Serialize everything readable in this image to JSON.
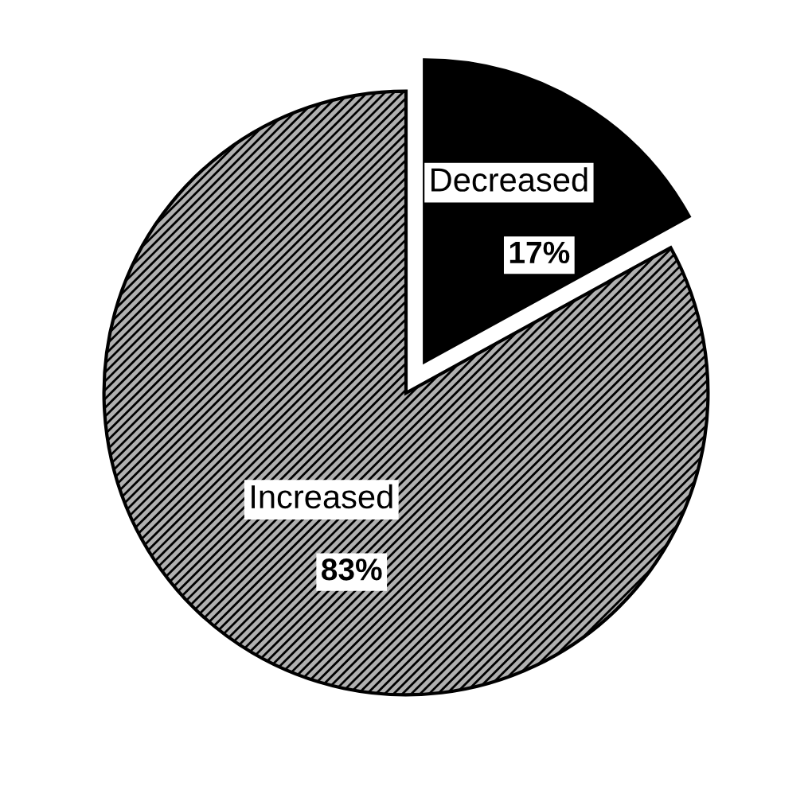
{
  "chart_data": {
    "type": "pie",
    "categories": [
      "Decreased",
      "Increased"
    ],
    "values": [
      17,
      83
    ],
    "value_labels": [
      "17%",
      "83%"
    ],
    "colors": [
      "#000000",
      "#b0b0b0"
    ],
    "legend": false
  }
}
